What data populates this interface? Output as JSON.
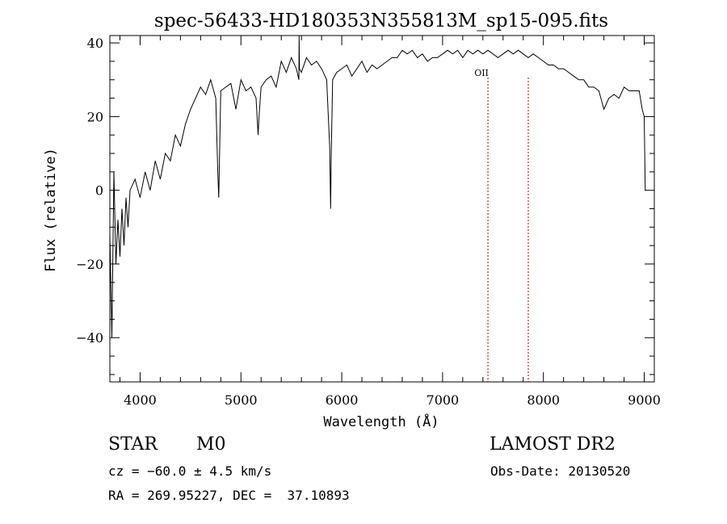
{
  "chart_data": {
    "type": "line",
    "title": "spec-56433-HD180353N355813M_sp15-095.fits",
    "xlabel": "Wavelength (Å)",
    "ylabel": "Flux (relative)",
    "xlim": [
      3700,
      9100
    ],
    "ylim": [
      -52,
      42
    ],
    "xticks": [
      4000,
      5000,
      6000,
      7000,
      8000,
      9000
    ],
    "yticks": [
      -40,
      -20,
      0,
      20,
      40
    ],
    "grid": false,
    "legend": "none",
    "series": [
      {
        "color": "#000000",
        "x": [
          3700,
          3720,
          3740,
          3760,
          3780,
          3800,
          3820,
          3840,
          3860,
          3880,
          3900,
          3950,
          4000,
          4050,
          4100,
          4150,
          4200,
          4250,
          4300,
          4350,
          4400,
          4450,
          4500,
          4550,
          4600,
          4650,
          4700,
          4750,
          4770,
          4780,
          4800,
          4850,
          4900,
          4950,
          5000,
          5050,
          5100,
          5150,
          5170,
          5180,
          5200,
          5250,
          5300,
          5350,
          5400,
          5450,
          5500,
          5550,
          5575,
          5577,
          5580,
          5600,
          5650,
          5700,
          5750,
          5800,
          5850,
          5880,
          5890,
          5896,
          5910,
          5950,
          6000,
          6050,
          6100,
          6150,
          6200,
          6250,
          6300,
          6350,
          6400,
          6450,
          6500,
          6550,
          6600,
          6650,
          6700,
          6750,
          6800,
          6850,
          6900,
          6950,
          7000,
          7050,
          7100,
          7150,
          7200,
          7250,
          7300,
          7350,
          7400,
          7450,
          7500,
          7550,
          7600,
          7650,
          7700,
          7750,
          7800,
          7850,
          7900,
          7950,
          8000,
          8050,
          8100,
          8150,
          8200,
          8250,
          8300,
          8350,
          8400,
          8450,
          8500,
          8550,
          8600,
          8650,
          8700,
          8750,
          8800,
          8850,
          8900,
          8950,
          8980,
          9000,
          9010
        ],
        "y": [
          -12,
          -40,
          5,
          -20,
          -8,
          -18,
          -5,
          -15,
          -2,
          -10,
          0,
          3,
          -2,
          5,
          0,
          8,
          3,
          10,
          8,
          15,
          12,
          18,
          22,
          25,
          28,
          26,
          30,
          25,
          5,
          -2,
          27,
          28,
          29,
          22,
          30,
          27,
          28,
          25,
          15,
          20,
          28,
          30,
          31,
          28,
          35,
          32,
          36,
          33,
          30,
          42,
          33,
          32,
          36,
          34,
          35,
          33,
          30,
          12,
          -5,
          10,
          30,
          32,
          33,
          34,
          31,
          33,
          35,
          32,
          34,
          33,
          34,
          35,
          36,
          36,
          38,
          37,
          38,
          36,
          37,
          35,
          36,
          36,
          37,
          38,
          37,
          38,
          36,
          38,
          37,
          38,
          37,
          38,
          37,
          36,
          37,
          38,
          37,
          38,
          37,
          36,
          37,
          36,
          35,
          34,
          34,
          33,
          33,
          32,
          31,
          30,
          30,
          28,
          28,
          27,
          22,
          25,
          26,
          25,
          28,
          27,
          27,
          27,
          22,
          20,
          0
        ]
      }
    ],
    "annotations": [
      {
        "label": "OII",
        "x": 7450
      },
      {
        "label": "",
        "x": 7850
      }
    ]
  },
  "footer": {
    "class_label": "STAR",
    "subclass": "M0",
    "survey": "LAMOST DR2",
    "cz": "cz = −60.0 ± 4.5 km/s",
    "obs_date": "Obs-Date: 20130520",
    "coords": "RA = 269.95227, DEC =  37.10893"
  }
}
